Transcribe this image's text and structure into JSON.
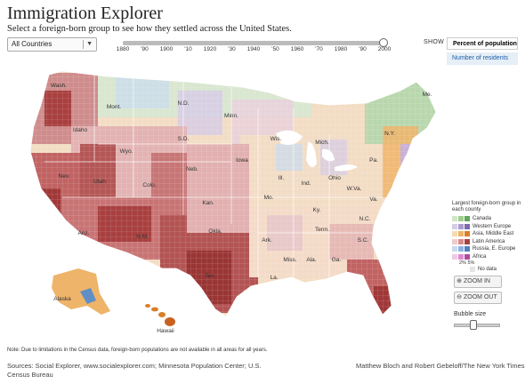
{
  "header": {
    "title": "Immigration Explorer",
    "subtitle": "Select a foreign-born group to see how they settled across the United States."
  },
  "country_select": {
    "value": "All Countries"
  },
  "timeline": {
    "ticks": [
      "1880",
      "'90",
      "1900",
      "'10",
      "1920",
      "'30",
      "1940",
      "'50",
      "1960",
      "'70",
      "1980",
      "'90",
      "2000"
    ],
    "selected": "2000"
  },
  "show": {
    "label": "SHOW",
    "options": [
      "Percent of population",
      "Number of residents"
    ],
    "selected": "Percent of population"
  },
  "map": {
    "state_labels": [
      {
        "id": "wash",
        "text": "Wash."
      },
      {
        "id": "mont",
        "text": "Mont."
      },
      {
        "id": "idaho",
        "text": "Idaho"
      },
      {
        "id": "wyo",
        "text": "Wyo."
      },
      {
        "id": "nev",
        "text": "Nev."
      },
      {
        "id": "utah",
        "text": "Utah"
      },
      {
        "id": "colo",
        "text": "Colo."
      },
      {
        "id": "ariz",
        "text": "Ariz."
      },
      {
        "id": "nm",
        "text": "N.M."
      },
      {
        "id": "nd",
        "text": "N.D."
      },
      {
        "id": "sd",
        "text": "S.D."
      },
      {
        "id": "neb",
        "text": "Neb."
      },
      {
        "id": "kan",
        "text": "Kan."
      },
      {
        "id": "okla",
        "text": "Okla."
      },
      {
        "id": "tex",
        "text": "Tex."
      },
      {
        "id": "minn",
        "text": "Minn."
      },
      {
        "id": "iowa",
        "text": "Iowa"
      },
      {
        "id": "mo",
        "text": "Mo."
      },
      {
        "id": "ark",
        "text": "Ark."
      },
      {
        "id": "la",
        "text": "La."
      },
      {
        "id": "wis",
        "text": "Wis."
      },
      {
        "id": "ill",
        "text": "Ill."
      },
      {
        "id": "mich",
        "text": "Mich."
      },
      {
        "id": "ind",
        "text": "Ind."
      },
      {
        "id": "ohio",
        "text": "Ohio"
      },
      {
        "id": "ky",
        "text": "Ky."
      },
      {
        "id": "tenn",
        "text": "Tenn."
      },
      {
        "id": "miss",
        "text": "Miss."
      },
      {
        "id": "ala",
        "text": "Ala."
      },
      {
        "id": "ga",
        "text": "Ga."
      },
      {
        "id": "sc",
        "text": "S.C."
      },
      {
        "id": "nc",
        "text": "N.C."
      },
      {
        "id": "va",
        "text": "Va."
      },
      {
        "id": "wva",
        "text": "W.Va."
      },
      {
        "id": "pa",
        "text": "Pa."
      },
      {
        "id": "ny",
        "text": "N.Y."
      },
      {
        "id": "me",
        "text": "Me."
      },
      {
        "id": "alaska",
        "text": "Alaska"
      },
      {
        "id": "hawaii",
        "text": "Hawaii"
      }
    ]
  },
  "legend": {
    "title": "Largest foreign-born group in each county",
    "items": [
      {
        "label": "Canada",
        "colors": [
          "#cfe6c4",
          "#9fce8e",
          "#5fa95a"
        ]
      },
      {
        "label": "Western Europe",
        "colors": [
          "#d4cbe6",
          "#ab9ccc",
          "#7e6aac"
        ]
      },
      {
        "label": "Asia, Middle East",
        "colors": [
          "#f6d9b0",
          "#eeb46a",
          "#d97f26"
        ]
      },
      {
        "label": "Latin America",
        "colors": [
          "#efcaca",
          "#d78a8a",
          "#a8403f"
        ]
      },
      {
        "label": "Russia, E. Europe",
        "colors": [
          "#c8daf0",
          "#8fb3e0",
          "#4f7fc4"
        ]
      },
      {
        "label": "Africa",
        "colors": [
          "#f0c8e6",
          "#dd8ccb",
          "#b448a0"
        ]
      }
    ],
    "pct_label": "2%  5%",
    "nodata_label": "No data",
    "nodata_color": "#e4e4e4"
  },
  "controls": {
    "zoom_in": "ZOOM IN",
    "zoom_out": "ZOOM OUT",
    "bubble_label": "Bubble size"
  },
  "footer": {
    "note": "Note: Due to limitations in the Census data, foreign-born  populations are not available in all areas for all years.",
    "sources": "Sources: Social Explorer, www.socialexplorer.com; Minnesota Population Center; U.S. Census Bureau",
    "credit": "Matthew Bloch and Robert Gebeloff/The New York Times"
  }
}
